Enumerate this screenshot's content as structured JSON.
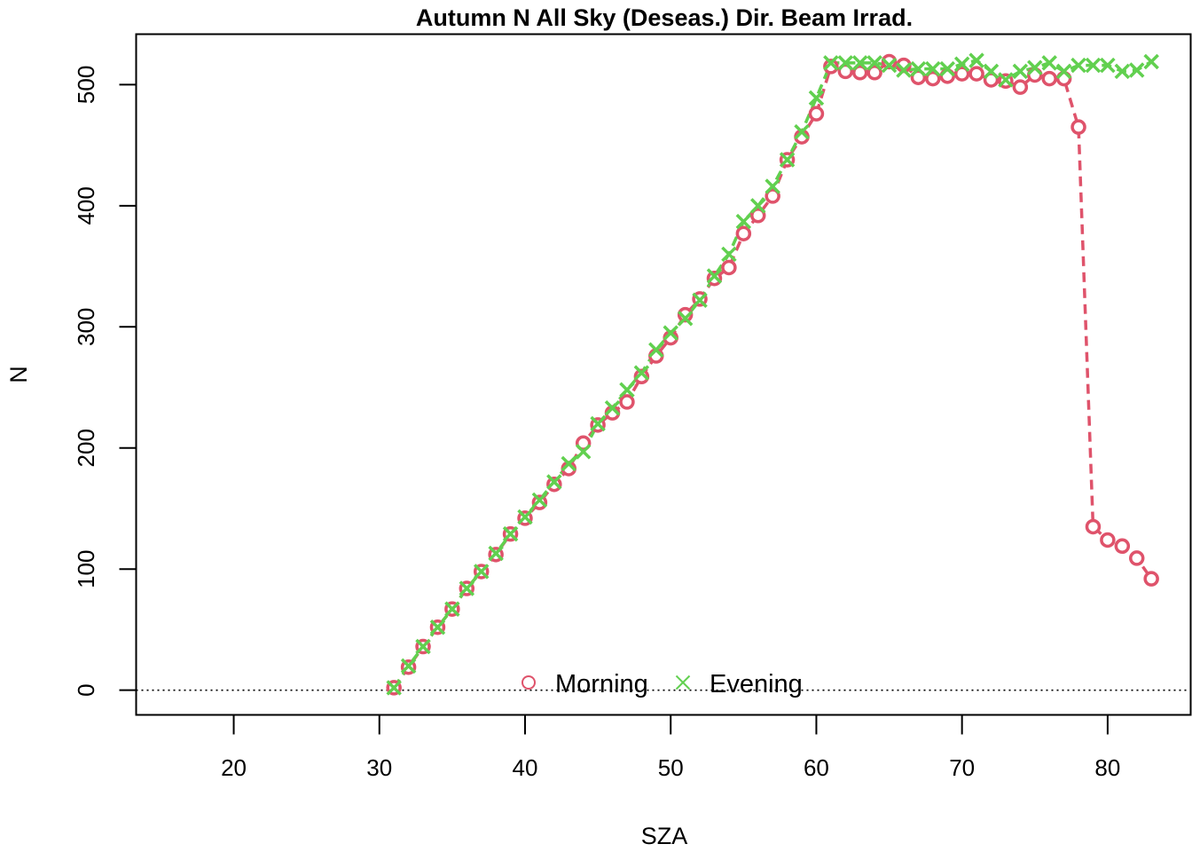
{
  "chart_data": {
    "type": "scatter",
    "title": "Autumn N All Sky (Deseas.) Dir. Beam Irrad.",
    "xlabel": "SZA",
    "ylabel": "N",
    "xlim": [
      13.3,
      85.7
    ],
    "ylim": [
      -20.4,
      541.7
    ],
    "x_ticks": [
      20,
      30,
      40,
      50,
      60,
      70,
      80
    ],
    "y_ticks": [
      0,
      100,
      200,
      300,
      400,
      500
    ],
    "reference_line": {
      "y": 0,
      "style": "dotted",
      "color": "#000000"
    },
    "legend": {
      "position": "bottom-center",
      "frame": false
    },
    "series": [
      {
        "name": "Morning",
        "marker": "circle",
        "color": "#DF536B",
        "line": "dashed",
        "points": [
          [
            31,
            2
          ],
          [
            32,
            19
          ],
          [
            33,
            36
          ],
          [
            34,
            52
          ],
          [
            35,
            67
          ],
          [
            36,
            84
          ],
          [
            37,
            98
          ],
          [
            38,
            112
          ],
          [
            39,
            129
          ],
          [
            40,
            142
          ],
          [
            41,
            155
          ],
          [
            42,
            170
          ],
          [
            43,
            183
          ],
          [
            44,
            204
          ],
          [
            45,
            219
          ],
          [
            46,
            229
          ],
          [
            47,
            238
          ],
          [
            48,
            259
          ],
          [
            49,
            276
          ],
          [
            50,
            291
          ],
          [
            51,
            310
          ],
          [
            52,
            323
          ],
          [
            53,
            340
          ],
          [
            54,
            349
          ],
          [
            55,
            377
          ],
          [
            56,
            392
          ],
          [
            57,
            408
          ],
          [
            58,
            438
          ],
          [
            59,
            457
          ],
          [
            60,
            476
          ],
          [
            61,
            515
          ],
          [
            62,
            511
          ],
          [
            63,
            510
          ],
          [
            64,
            510
          ],
          [
            65,
            519
          ],
          [
            66,
            516
          ],
          [
            67,
            506
          ],
          [
            68,
            505
          ],
          [
            69,
            507
          ],
          [
            70,
            509
          ],
          [
            71,
            509
          ],
          [
            72,
            504
          ],
          [
            73,
            503
          ],
          [
            74,
            498
          ],
          [
            75,
            508
          ],
          [
            76,
            505
          ],
          [
            77,
            505
          ],
          [
            78,
            465
          ],
          [
            79,
            135
          ],
          [
            80,
            124
          ],
          [
            81,
            119
          ],
          [
            82,
            109
          ],
          [
            83,
            92
          ]
        ]
      },
      {
        "name": "Evening",
        "marker": "cross",
        "color": "#61D04F",
        "line": "dashed",
        "points": [
          [
            31,
            2
          ],
          [
            32,
            20
          ],
          [
            33,
            36
          ],
          [
            34,
            52
          ],
          [
            35,
            67
          ],
          [
            36,
            84
          ],
          [
            37,
            98
          ],
          [
            38,
            113
          ],
          [
            39,
            129
          ],
          [
            40,
            143
          ],
          [
            41,
            157
          ],
          [
            42,
            172
          ],
          [
            43,
            187
          ],
          [
            44,
            197
          ],
          [
            45,
            220
          ],
          [
            46,
            233
          ],
          [
            47,
            248
          ],
          [
            48,
            262
          ],
          [
            49,
            281
          ],
          [
            50,
            295
          ],
          [
            51,
            307
          ],
          [
            52,
            322
          ],
          [
            53,
            342
          ],
          [
            54,
            360
          ],
          [
            55,
            387
          ],
          [
            56,
            400
          ],
          [
            57,
            416
          ],
          [
            58,
            438
          ],
          [
            59,
            461
          ],
          [
            60,
            489
          ],
          [
            61,
            518
          ],
          [
            62,
            518
          ],
          [
            63,
            518
          ],
          [
            64,
            518
          ],
          [
            65,
            516
          ],
          [
            66,
            512
          ],
          [
            67,
            513
          ],
          [
            68,
            513
          ],
          [
            69,
            513
          ],
          [
            70,
            517
          ],
          [
            71,
            520
          ],
          [
            72,
            511
          ],
          [
            73,
            504
          ],
          [
            74,
            511
          ],
          [
            75,
            514
          ],
          [
            76,
            518
          ],
          [
            77,
            511
          ],
          [
            78,
            516
          ],
          [
            79,
            516
          ],
          [
            80,
            516
          ],
          [
            81,
            511
          ],
          [
            82,
            512
          ],
          [
            83,
            519
          ]
        ]
      }
    ]
  }
}
